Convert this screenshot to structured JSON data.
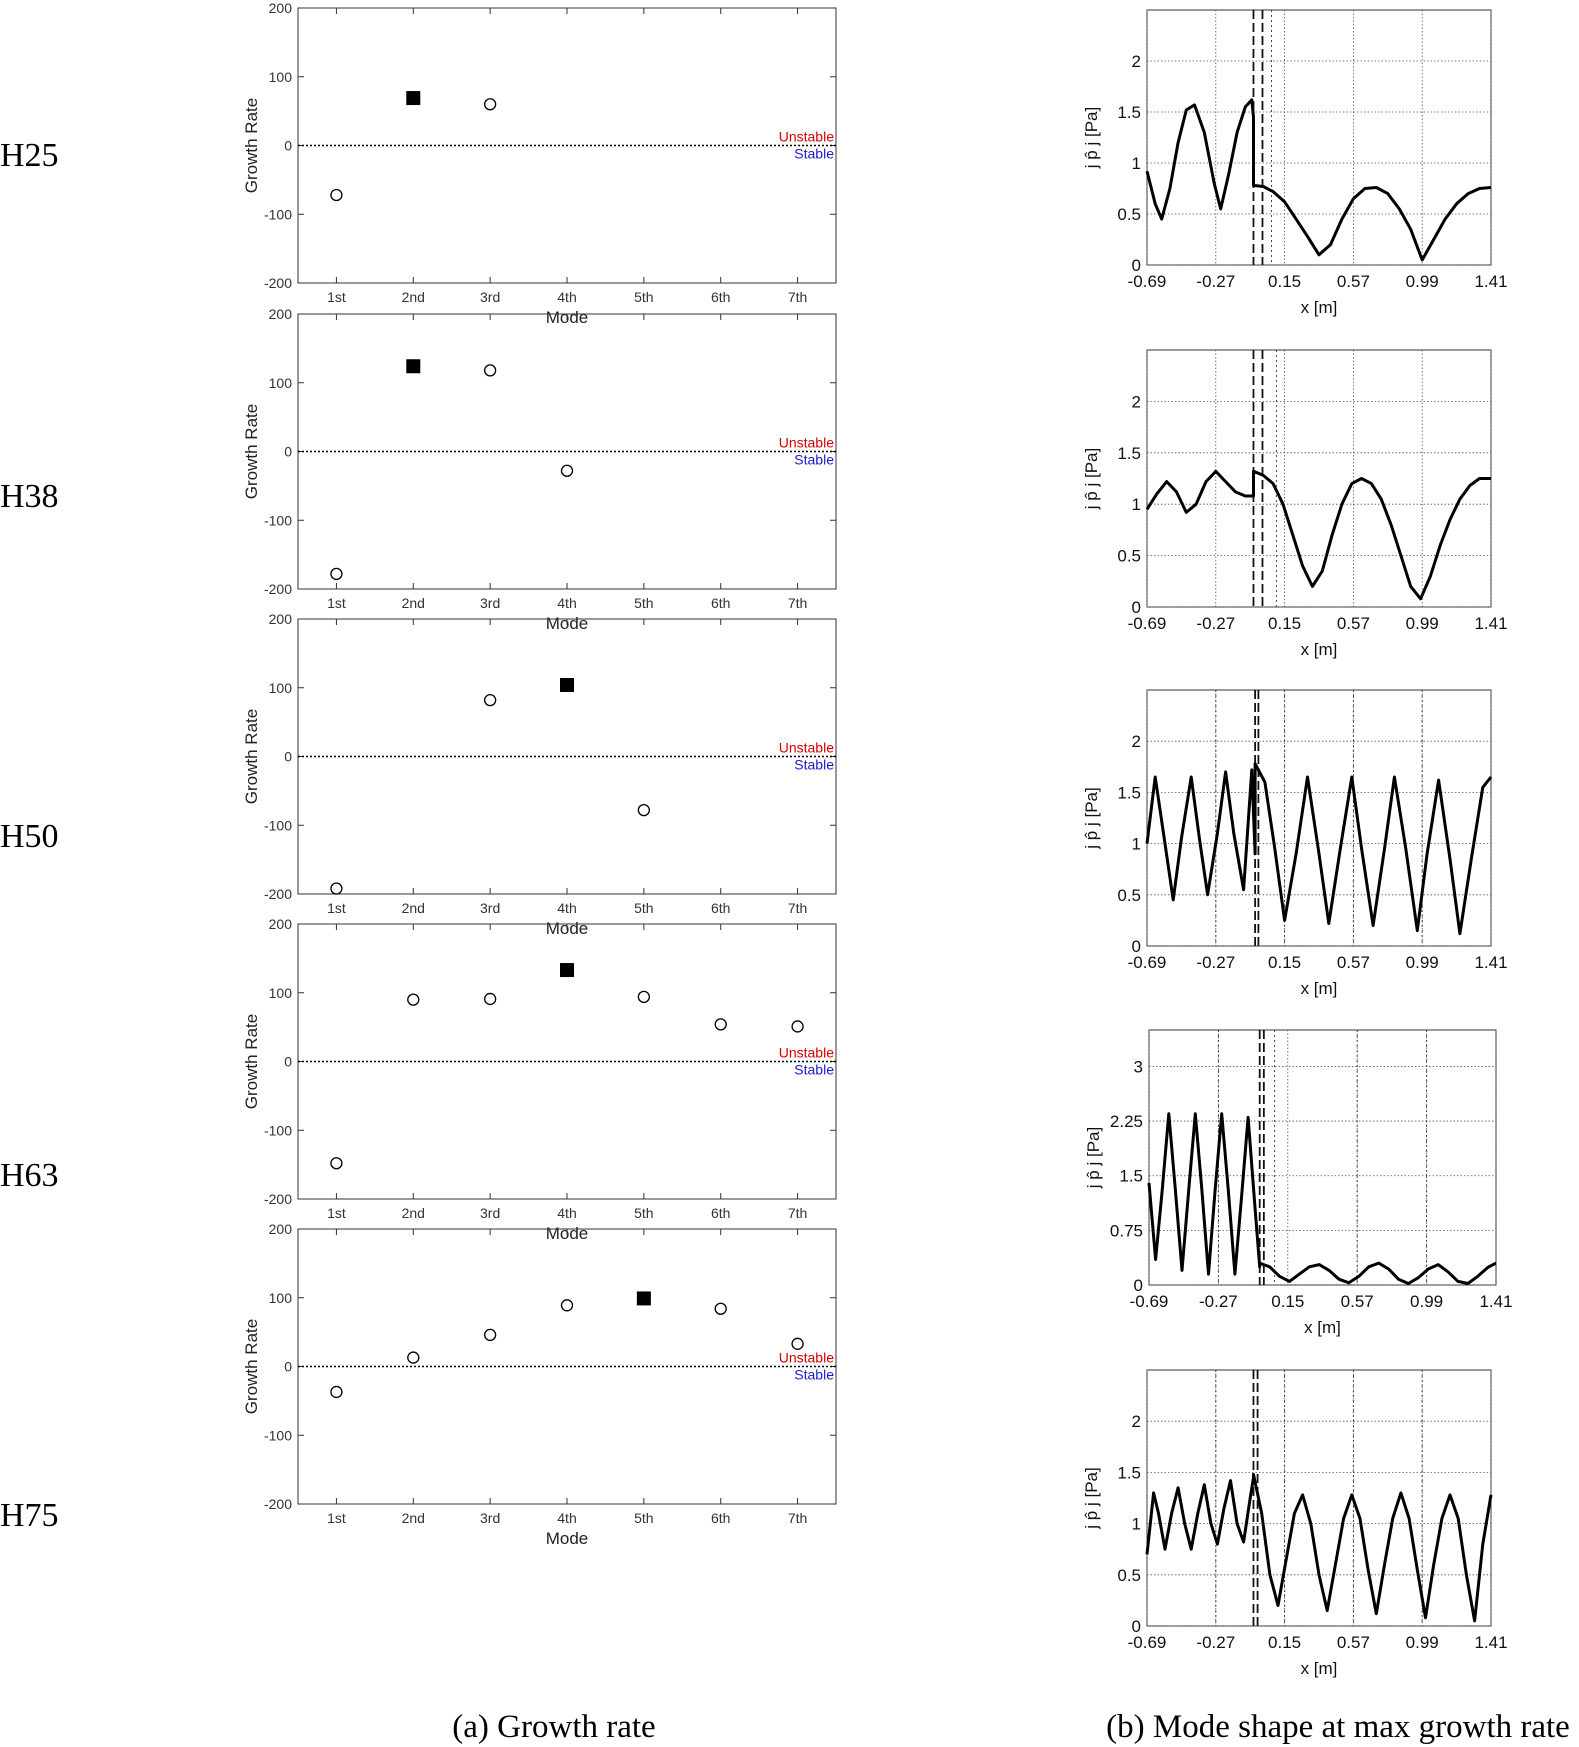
{
  "captions": {
    "left": "(a) Growth rate",
    "right": "(b) Mode shape at max growth rate"
  },
  "colors": {
    "unstable": "#d40000",
    "stable": "#1a1acc",
    "axis": "#333333",
    "grid": "#555555"
  },
  "chart_data": [
    {
      "type": "scatter",
      "row_label": "H25",
      "ylabel": "Growth Rate",
      "xlabel": "Mode",
      "categories": [
        "1st",
        "2nd",
        "3rd",
        "4th",
        "5th",
        "6th",
        "7th"
      ],
      "ylim": [
        -200,
        200
      ],
      "yticks": [
        "200",
        "100",
        "0",
        "-100",
        "-200"
      ],
      "zero_line_labels": [
        "Unstable",
        "Stable"
      ],
      "values": [
        -72,
        69,
        60,
        null,
        null,
        null,
        null
      ],
      "max_index": 1
    },
    {
      "type": "line",
      "row_label": "H25",
      "ylabel": "j p̂ j [Pa]",
      "xlabel": "x [m]",
      "xlim": [
        -0.69,
        1.41
      ],
      "ylim": [
        0,
        2.5
      ],
      "xticks": [
        "-0.69",
        "-0.27",
        "0.15",
        "0.57",
        "0.99",
        "1.41"
      ],
      "yticks": [
        "0",
        "0.5",
        "1",
        "1.5",
        "2"
      ],
      "x": [
        -0.69,
        -0.64,
        -0.6,
        -0.55,
        -0.5,
        -0.45,
        -0.4,
        -0.34,
        -0.28,
        -0.24,
        -0.19,
        -0.14,
        -0.09,
        -0.05,
        -0.04,
        -0.04,
        0.02,
        0.08,
        0.15,
        0.22,
        0.29,
        0.36,
        0.43,
        0.5,
        0.57,
        0.64,
        0.71,
        0.78,
        0.85,
        0.92,
        0.99,
        1.06,
        1.13,
        1.2,
        1.27,
        1.34,
        1.41
      ],
      "y": [
        0.92,
        0.6,
        0.45,
        0.75,
        1.2,
        1.52,
        1.57,
        1.3,
        0.8,
        0.55,
        0.9,
        1.3,
        1.55,
        1.62,
        1.45,
        0.78,
        0.77,
        0.72,
        0.62,
        0.45,
        0.28,
        0.1,
        0.2,
        0.45,
        0.65,
        0.75,
        0.76,
        0.7,
        0.55,
        0.35,
        0.05,
        0.25,
        0.45,
        0.6,
        0.7,
        0.75,
        0.76
      ],
      "vlines": [
        -0.04,
        0.015,
        0.07
      ]
    },
    {
      "type": "scatter",
      "row_label": "H38",
      "ylabel": "Growth Rate",
      "xlabel": "Mode",
      "categories": [
        "1st",
        "2nd",
        "3rd",
        "4th",
        "5th",
        "6th",
        "7th"
      ],
      "ylim": [
        -200,
        200
      ],
      "yticks": [
        "200",
        "100",
        "0",
        "-100",
        "-200"
      ],
      "zero_line_labels": [
        "Unstable",
        "Stable"
      ],
      "values": [
        -178,
        124,
        118,
        -28,
        null,
        null,
        null
      ],
      "max_index": 1
    },
    {
      "type": "line",
      "row_label": "H38",
      "ylabel": "j p̂ j [Pa]",
      "xlabel": "x [m]",
      "xlim": [
        -0.69,
        1.41
      ],
      "ylim": [
        0,
        2.5
      ],
      "xticks": [
        "-0.69",
        "-0.27",
        "0.15",
        "0.57",
        "0.99",
        "1.41"
      ],
      "yticks": [
        "0",
        "0.5",
        "1",
        "1.5",
        "2"
      ],
      "x": [
        -0.69,
        -0.63,
        -0.57,
        -0.51,
        -0.45,
        -0.39,
        -0.33,
        -0.27,
        -0.21,
        -0.15,
        -0.09,
        -0.04,
        -0.04,
        0.02,
        0.08,
        0.14,
        0.2,
        0.26,
        0.32,
        0.38,
        0.44,
        0.5,
        0.56,
        0.62,
        0.68,
        0.74,
        0.8,
        0.86,
        0.92,
        0.98,
        1.04,
        1.1,
        1.16,
        1.22,
        1.28,
        1.34,
        1.41
      ],
      "y": [
        0.95,
        1.1,
        1.22,
        1.12,
        0.92,
        1.0,
        1.22,
        1.32,
        1.22,
        1.12,
        1.08,
        1.08,
        1.32,
        1.28,
        1.2,
        1.0,
        0.7,
        0.4,
        0.2,
        0.35,
        0.7,
        1.0,
        1.2,
        1.25,
        1.2,
        1.05,
        0.8,
        0.5,
        0.2,
        0.08,
        0.3,
        0.6,
        0.85,
        1.05,
        1.18,
        1.25,
        1.25
      ],
      "vlines": [
        -0.04,
        0.015,
        0.1
      ]
    },
    {
      "type": "scatter",
      "row_label": "H50",
      "ylabel": "Growth Rate",
      "xlabel": "Mode",
      "categories": [
        "1st",
        "2nd",
        "3rd",
        "4th",
        "5th",
        "6th",
        "7th"
      ],
      "ylim": [
        -200,
        200
      ],
      "yticks": [
        "200",
        "100",
        "0",
        "-100",
        "-200"
      ],
      "zero_line_labels": [
        "Unstable",
        "Stable"
      ],
      "values": [
        -192,
        null,
        82,
        104,
        -78,
        null,
        null
      ],
      "max_index": 3
    },
    {
      "type": "line",
      "row_label": "H50",
      "ylabel": "j p̂ j [Pa]",
      "xlabel": "x [m]",
      "xlim": [
        -0.69,
        1.41
      ],
      "ylim": [
        0,
        2.5
      ],
      "xticks": [
        "-0.69",
        "-0.27",
        "0.15",
        "0.57",
        "0.99",
        "1.41"
      ],
      "yticks": [
        "0",
        "0.5",
        "1",
        "1.5",
        "2"
      ],
      "x": [
        -0.69,
        -0.64,
        -0.58,
        -0.53,
        -0.48,
        -0.42,
        -0.37,
        -0.32,
        -0.26,
        -0.21,
        -0.16,
        -0.1,
        -0.05,
        -0.03,
        -0.03,
        0.03,
        0.09,
        0.15,
        0.22,
        0.29,
        0.36,
        0.42,
        0.49,
        0.56,
        0.62,
        0.69,
        0.76,
        0.82,
        0.89,
        0.96,
        1.02,
        1.09,
        1.16,
        1.22,
        1.29,
        1.36,
        1.41
      ],
      "y": [
        1.0,
        1.65,
        1.0,
        0.45,
        1.05,
        1.65,
        1.05,
        0.5,
        1.1,
        1.7,
        1.1,
        0.55,
        1.72,
        0.9,
        1.78,
        1.6,
        0.95,
        0.25,
        0.9,
        1.65,
        0.9,
        0.22,
        0.95,
        1.65,
        0.95,
        0.2,
        0.95,
        1.65,
        0.95,
        0.15,
        0.9,
        1.62,
        0.85,
        0.12,
        0.85,
        1.55,
        1.65
      ],
      "vlines": [
        -0.27,
        -0.03,
        -0.01,
        0.15,
        0.57,
        0.99
      ]
    },
    {
      "type": "scatter",
      "row_label": "H63",
      "ylabel": "Growth Rate",
      "xlabel": "Mode",
      "categories": [
        "1st",
        "2nd",
        "3rd",
        "4th",
        "5th",
        "6th",
        "7th"
      ],
      "ylim": [
        -200,
        200
      ],
      "yticks": [
        "200",
        "100",
        "0",
        "-100",
        "-200"
      ],
      "zero_line_labels": [
        "Unstable",
        "Stable"
      ],
      "values": [
        -148,
        90,
        91,
        133,
        94,
        54,
        51
      ],
      "max_index": 3
    },
    {
      "type": "line",
      "row_label": "H63",
      "ylabel": "j p̂ j [Pa]",
      "xlabel": "x [m]",
      "xlim": [
        -0.69,
        1.41
      ],
      "ylim": [
        0,
        3.5
      ],
      "xticks": [
        "-0.69",
        "-0.27",
        "0.15",
        "0.57",
        "0.99",
        "1.41"
      ],
      "yticks": [
        "0",
        "0.75",
        "1.5",
        "2.25",
        "3"
      ],
      "x": [
        -0.69,
        -0.65,
        -0.61,
        -0.57,
        -0.53,
        -0.49,
        -0.45,
        -0.41,
        -0.37,
        -0.33,
        -0.29,
        -0.25,
        -0.21,
        -0.17,
        -0.13,
        -0.09,
        -0.05,
        -0.02,
        -0.02,
        0.04,
        0.1,
        0.16,
        0.22,
        0.28,
        0.34,
        0.4,
        0.46,
        0.52,
        0.58,
        0.64,
        0.7,
        0.76,
        0.82,
        0.88,
        0.94,
        1.0,
        1.06,
        1.12,
        1.18,
        1.24,
        1.3,
        1.36,
        1.41
      ],
      "y": [
        1.4,
        0.35,
        1.3,
        2.35,
        1.3,
        0.2,
        1.3,
        2.35,
        1.3,
        0.15,
        1.3,
        2.35,
        1.3,
        0.15,
        1.2,
        2.3,
        1.1,
        0.25,
        0.3,
        0.25,
        0.12,
        0.05,
        0.15,
        0.25,
        0.28,
        0.2,
        0.08,
        0.03,
        0.12,
        0.25,
        0.3,
        0.22,
        0.08,
        0.02,
        0.1,
        0.22,
        0.28,
        0.18,
        0.05,
        0.02,
        0.12,
        0.24,
        0.3
      ],
      "vlines": [
        -0.27,
        -0.02,
        0.005,
        0.07,
        0.57,
        0.99
      ]
    },
    {
      "type": "scatter",
      "row_label": "H75",
      "ylabel": "Growth Rate",
      "xlabel": "Mode",
      "categories": [
        "1st",
        "2nd",
        "3rd",
        "4th",
        "5th",
        "6th",
        "7th"
      ],
      "ylim": [
        -200,
        200
      ],
      "yticks": [
        "200",
        "100",
        "0",
        "-100",
        "-200"
      ],
      "zero_line_labels": [
        "Unstable",
        "Stable"
      ],
      "values": [
        -37,
        13,
        46,
        89,
        99,
        84,
        33
      ],
      "max_index": 4
    },
    {
      "type": "line",
      "row_label": "H75",
      "ylabel": "j p̂ j [Pa]",
      "xlabel": "x [m]",
      "xlim": [
        -0.69,
        1.41
      ],
      "ylim": [
        0,
        2.5
      ],
      "xticks": [
        "-0.69",
        "-0.27",
        "0.15",
        "0.57",
        "0.99",
        "1.41"
      ],
      "yticks": [
        "0",
        "0.5",
        "1",
        "1.5",
        "2"
      ],
      "x": [
        -0.69,
        -0.65,
        -0.62,
        -0.58,
        -0.54,
        -0.5,
        -0.46,
        -0.42,
        -0.38,
        -0.34,
        -0.3,
        -0.26,
        -0.22,
        -0.18,
        -0.14,
        -0.1,
        -0.06,
        -0.04,
        -0.04,
        0.01,
        0.06,
        0.11,
        0.16,
        0.21,
        0.26,
        0.31,
        0.36,
        0.41,
        0.46,
        0.51,
        0.56,
        0.61,
        0.66,
        0.71,
        0.76,
        0.81,
        0.86,
        0.91,
        0.96,
        1.01,
        1.06,
        1.11,
        1.16,
        1.21,
        1.26,
        1.31,
        1.36,
        1.41
      ],
      "y": [
        0.7,
        1.3,
        1.1,
        0.75,
        1.1,
        1.35,
        1.0,
        0.75,
        1.1,
        1.38,
        1.0,
        0.8,
        1.15,
        1.42,
        1.0,
        0.82,
        1.25,
        1.45,
        1.48,
        1.1,
        0.5,
        0.2,
        0.65,
        1.1,
        1.28,
        1.0,
        0.5,
        0.15,
        0.6,
        1.05,
        1.28,
        1.05,
        0.55,
        0.12,
        0.6,
        1.05,
        1.3,
        1.05,
        0.55,
        0.08,
        0.6,
        1.05,
        1.28,
        1.05,
        0.5,
        0.05,
        0.8,
        1.28
      ],
      "vlines": [
        -0.27,
        -0.04,
        -0.015,
        0.15,
        0.57,
        0.99
      ]
    }
  ]
}
